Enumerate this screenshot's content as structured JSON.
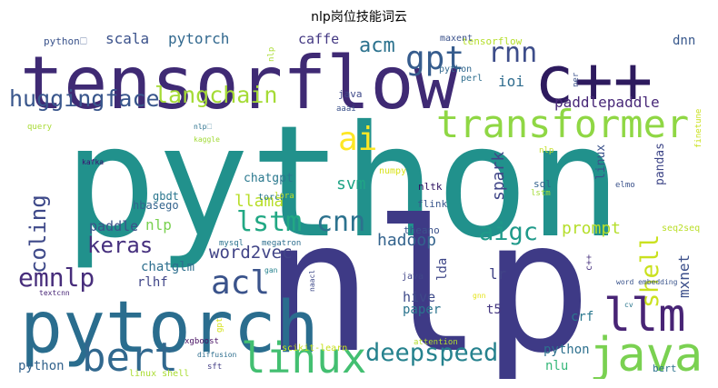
{
  "title": "nlp岗位技能词云",
  "words": [
    {
      "text": "python",
      "color": "#21918c"
    },
    {
      "text": "nlp",
      "color": "#3e3a86"
    },
    {
      "text": "tensorflow",
      "color": "#3f2a74"
    },
    {
      "text": "c++",
      "color": "#2d1a5e"
    },
    {
      "text": "pytorch",
      "color": "#2a6d8e"
    },
    {
      "text": "transformer",
      "color": "#8fd744"
    },
    {
      "text": "java",
      "color": "#7ad151"
    },
    {
      "text": "linux",
      "color": "#43bf71"
    },
    {
      "text": "llm",
      "color": "#482475"
    },
    {
      "text": "bert",
      "color": "#31688e"
    },
    {
      "text": "gpt",
      "color": "#365c8d"
    },
    {
      "text": "rnn",
      "color": "#3d4d8a"
    },
    {
      "text": "langchain",
      "color": "#a5db36"
    },
    {
      "text": "huggingface",
      "color": "#39568c"
    },
    {
      "text": "ai",
      "color": "#fde725"
    },
    {
      "text": "lstm",
      "color": "#22a884"
    },
    {
      "text": "cnn",
      "color": "#2c728e"
    },
    {
      "text": "coling",
      "color": "#3e4989"
    },
    {
      "text": "acl",
      "color": "#3a538b"
    },
    {
      "text": "emnlp",
      "color": "#472d7b"
    },
    {
      "text": "deepspeed",
      "color": "#26828e"
    },
    {
      "text": "aigc",
      "color": "#1f9a8a"
    },
    {
      "text": "shell",
      "color": "#cae11f"
    },
    {
      "text": "keras",
      "color": "#46307e"
    },
    {
      "text": "word2vec",
      "color": "#414487"
    },
    {
      "text": "acm",
      "color": "#2c728e"
    },
    {
      "text": "svm",
      "color": "#20a486"
    },
    {
      "text": "prompt",
      "color": "#b5de2b"
    },
    {
      "text": "llama",
      "color": "#b8de29"
    },
    {
      "text": "hadoop",
      "color": "#33638d"
    },
    {
      "text": "spark",
      "color": "#404688"
    },
    {
      "text": "scala",
      "color": "#3b528b"
    },
    {
      "text": "pytorch",
      "color": "#31688e"
    },
    {
      "text": "caffe",
      "color": "#443983"
    },
    {
      "text": "dnn",
      "color": "#38588c"
    },
    {
      "text": "paddlepaddle",
      "color": "#482878"
    },
    {
      "text": "ioi",
      "color": "#2f6c8e"
    },
    {
      "text": "nlp",
      "color": "#7ad151"
    },
    {
      "text": "paddle",
      "color": "#3b528b"
    },
    {
      "text": "chatgpt",
      "color": "#2a788e"
    },
    {
      "text": "chatglm",
      "color": "#2e6f8e"
    },
    {
      "text": "rlhf",
      "color": "#404588"
    },
    {
      "text": "hive",
      "color": "#3e4a89"
    },
    {
      "text": "paper",
      "color": "#2b748e"
    },
    {
      "text": "lr",
      "color": "#414387"
    },
    {
      "text": "mxnet",
      "color": "#3c4f8a"
    },
    {
      "text": "crf",
      "color": "#2a778e"
    },
    {
      "text": "t5",
      "color": "#453781"
    },
    {
      "text": "python",
      "color": "#2d708e"
    },
    {
      "text": "nlu",
      "color": "#35b779"
    },
    {
      "text": "python",
      "color": "#33638d"
    },
    {
      "text": "lda",
      "color": "#3f4788"
    },
    {
      "text": "python🗆",
      "color": "#3a538b"
    },
    {
      "text": "tensorflow",
      "color": "#b5de2b"
    },
    {
      "text": "maxent",
      "color": "#3b528b"
    },
    {
      "text": "perl",
      "color": "#2e6e8e"
    },
    {
      "text": "python",
      "color": "#31688e"
    },
    {
      "text": "java",
      "color": "#3e4989"
    },
    {
      "text": "aaai",
      "color": "#3b528b"
    },
    {
      "text": "nlp",
      "color": "#aadc32"
    },
    {
      "text": "query",
      "color": "#a8db34"
    },
    {
      "text": "nlp🗆",
      "color": "#2c728e"
    },
    {
      "text": "kaggle",
      "color": "#a2da37"
    },
    {
      "text": "kafka",
      "color": "#3b0f70"
    },
    {
      "text": "numpy",
      "color": "#d8e219"
    },
    {
      "text": "nltk",
      "color": "#2d1160"
    },
    {
      "text": "flink",
      "color": "#39568c"
    },
    {
      "text": "sql",
      "color": "#33628d"
    },
    {
      "text": "lstm",
      "color": "#a5db36"
    },
    {
      "text": "nlp",
      "color": "#c2df23"
    },
    {
      "text": "linux",
      "color": "#3b528b"
    },
    {
      "text": "pandas",
      "color": "#3f4788"
    },
    {
      "text": "elmo",
      "color": "#3b528b"
    },
    {
      "text": "hbasego",
      "color": "#33638d"
    },
    {
      "text": "gbdt",
      "color": "#2a768e"
    },
    {
      "text": "torch",
      "color": "#2a788e"
    },
    {
      "text": "lora",
      "color": "#c0df25"
    },
    {
      "text": "mysql",
      "color": "#2c728e"
    },
    {
      "text": "megatron",
      "color": "#2e6e8e"
    },
    {
      "text": "theano",
      "color": "#3b528b"
    },
    {
      "text": "gan",
      "color": "#26828e"
    },
    {
      "text": "naacl",
      "color": "#3e4989"
    },
    {
      "text": "seq2seq",
      "color": "#bade28"
    },
    {
      "text": "c++",
      "color": "#46307e"
    },
    {
      "text": "java",
      "color": "#404588"
    },
    {
      "text": "gnn",
      "color": "#e5e419"
    },
    {
      "text": "word embedding",
      "color": "#3a548c"
    },
    {
      "text": "cv",
      "color": "#2a778e"
    },
    {
      "text": "textcnn",
      "color": "#482677"
    },
    {
      "text": "xgboost",
      "color": "#471063"
    },
    {
      "text": "diffusion",
      "color": "#2e6e8e"
    },
    {
      "text": "scikit-learn",
      "color": "#c8e020"
    },
    {
      "text": "attention",
      "color": "#b2dd2d"
    },
    {
      "text": "linux shell",
      "color": "#aadc32"
    },
    {
      "text": "sft",
      "color": "#433e85"
    },
    {
      "text": "bert",
      "color": "#2c728e"
    },
    {
      "text": "finetune",
      "color": "#cae11f"
    },
    {
      "text": "ner",
      "color": "#3b528b"
    },
    {
      "text": "gpt",
      "color": "#d5e21a"
    }
  ]
}
